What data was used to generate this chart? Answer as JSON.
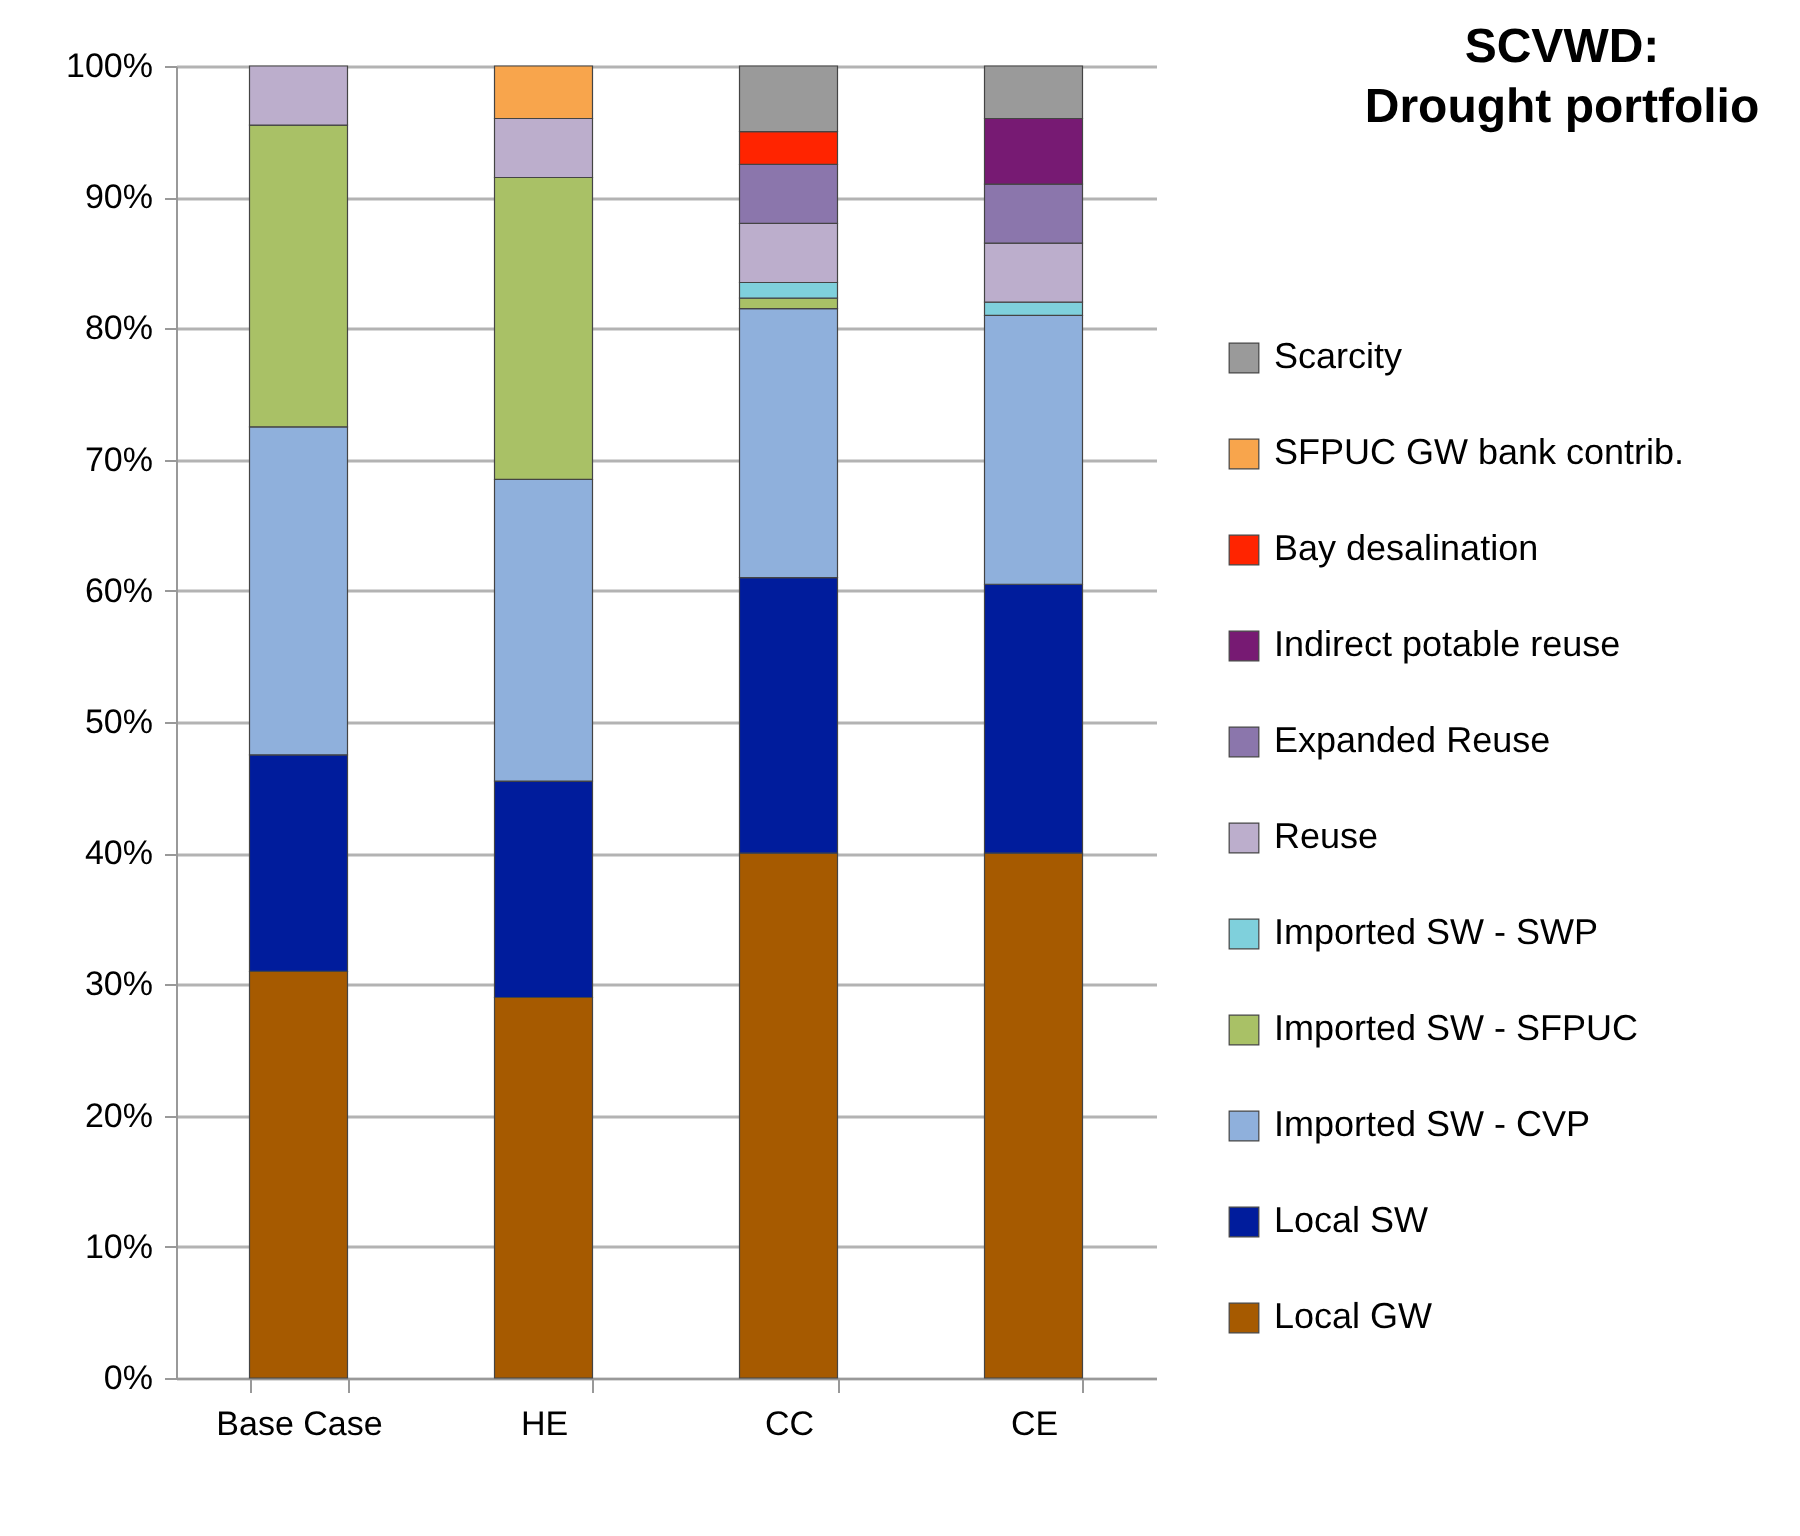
{
  "chart_data": {
    "type": "bar",
    "title": "SCVWD:\nDrought portfolio",
    "stacked": true,
    "categories": [
      "Base Case",
      "HE",
      "CC",
      "CE"
    ],
    "series": [
      {
        "name": "Local GW",
        "color": "#a65a00",
        "values": [
          31,
          29,
          40,
          40
        ]
      },
      {
        "name": "Local SW",
        "color": "#001c9c",
        "values": [
          16.5,
          16.5,
          21,
          20.5
        ]
      },
      {
        "name": "Imported SW - CVP",
        "color": "#8fb0dc",
        "values": [
          25,
          23,
          20.5,
          20.5
        ]
      },
      {
        "name": "Imported SW - SFPUC",
        "color": "#a9c166",
        "values": [
          23,
          23,
          0.8,
          null
        ]
      },
      {
        "name": "Imported SW - SWP",
        "color": "#7fd0dc",
        "values": [
          null,
          null,
          1.2,
          1
        ]
      },
      {
        "name": "Reuse",
        "color": "#bcaecc",
        "values": [
          4.5,
          4.5,
          4.5,
          4.5
        ]
      },
      {
        "name": "Expanded Reuse",
        "color": "#8b76ac",
        "values": [
          null,
          null,
          4.5,
          4.5
        ]
      },
      {
        "name": "Indirect potable reuse",
        "color": "#771a73",
        "values": [
          null,
          null,
          null,
          5
        ]
      },
      {
        "name": "Bay desalination",
        "color": "#ff2400",
        "values": [
          null,
          null,
          2.5,
          null
        ]
      },
      {
        "name": "SFPUC GW bank contrib.",
        "color": "#f8a54c",
        "values": [
          null,
          4,
          null,
          null
        ]
      },
      {
        "name": "Scarcity",
        "color": "#9a9a9a",
        "values": [
          null,
          null,
          5,
          4
        ]
      }
    ],
    "ylim": [
      0,
      100
    ],
    "yticks": [
      {
        "value": 0,
        "label": "0%"
      },
      {
        "value": 10,
        "label": "10%"
      },
      {
        "value": 20,
        "label": "20%"
      },
      {
        "value": 30,
        "label": "30%"
      },
      {
        "value": 40,
        "label": "40%"
      },
      {
        "value": 50,
        "label": "50%"
      },
      {
        "value": 60,
        "label": "60%"
      },
      {
        "value": 70,
        "label": "70%"
      },
      {
        "value": 80,
        "label": "80%"
      },
      {
        "value": 90,
        "label": "90%"
      },
      {
        "value": 100,
        "label": "100%"
      }
    ],
    "grid": "y",
    "legend": "right"
  }
}
